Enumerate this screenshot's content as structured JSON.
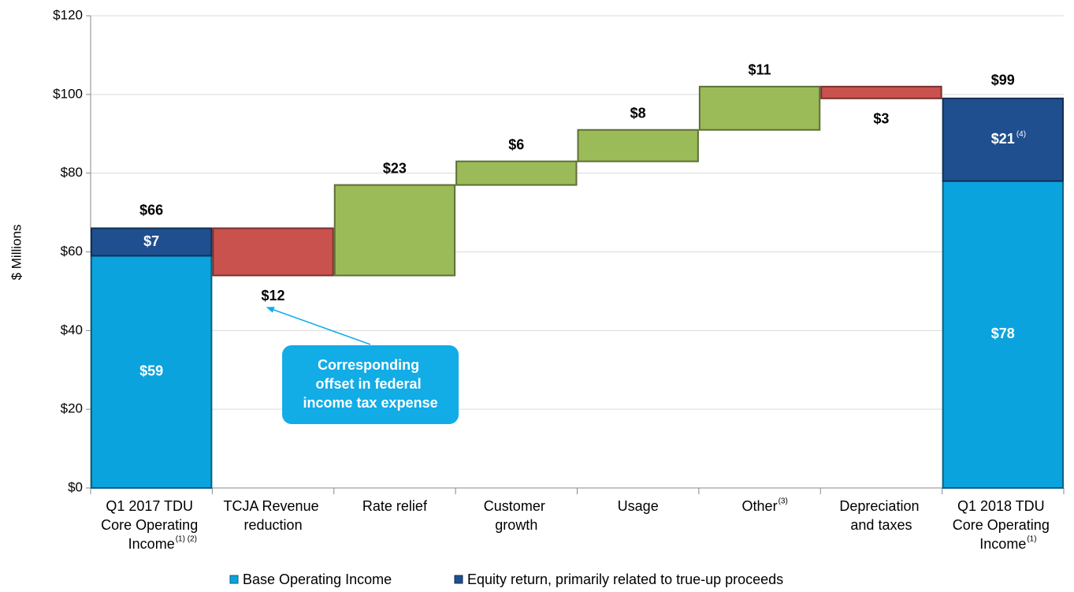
{
  "chart_data": {
    "type": "waterfall",
    "y_label": "$ Millions",
    "categories": [
      "Q1 2017 TDU Core Operating Income",
      "TCJA Revenue reduction",
      "Rate relief",
      "Customer growth",
      "Usage",
      "Other",
      "Depreciation and taxes",
      "Q1 2018 TDU Core Operating Income"
    ],
    "category_footnotes": {
      "0": "(1) (2)",
      "5": "(3)",
      "7": "(1)"
    },
    "series": [
      {
        "name": "Base Operating Income",
        "color": "#0ba3dd",
        "values": [
          59,
          null,
          null,
          null,
          null,
          null,
          null,
          78
        ],
        "value_labels": [
          "$59",
          null,
          null,
          null,
          null,
          null,
          null,
          "$78"
        ]
      },
      {
        "name": "Equity return, primarily related to true-up proceeds",
        "color": "#1f4f8e",
        "values": [
          7,
          null,
          null,
          null,
          null,
          null,
          null,
          21
        ],
        "value_labels": [
          "$7",
          null,
          null,
          null,
          null,
          null,
          null,
          "$21"
        ],
        "value_footnotes": {
          "7": "(4)"
        }
      }
    ],
    "totals": [
      66,
      null,
      null,
      null,
      null,
      null,
      null,
      99
    ],
    "total_labels": [
      "$66",
      null,
      null,
      null,
      null,
      null,
      null,
      "$99"
    ],
    "changes": [
      null,
      -12,
      23,
      6,
      8,
      11,
      -3,
      null
    ],
    "change_labels": [
      null,
      "$12",
      "$23",
      "$6",
      "$8",
      "$11",
      "$3",
      null
    ],
    "increase_color": "#9bbb59",
    "decrease_color": "#c9524e",
    "annotation": {
      "text": "Corresponding offset in federal income tax expense",
      "target": 1,
      "color": "#12ace6"
    },
    "ylim": [
      0,
      120
    ],
    "yticks": [
      {
        "value": 0,
        "label": "$0"
      },
      {
        "value": 20,
        "label": "$20"
      },
      {
        "value": 40,
        "label": "$40"
      },
      {
        "value": 60,
        "label": "$60"
      },
      {
        "value": 80,
        "label": "$80"
      },
      {
        "value": 100,
        "label": "$100"
      },
      {
        "value": 120,
        "label": "$120"
      }
    ],
    "grid": true,
    "legend": "bottom"
  }
}
